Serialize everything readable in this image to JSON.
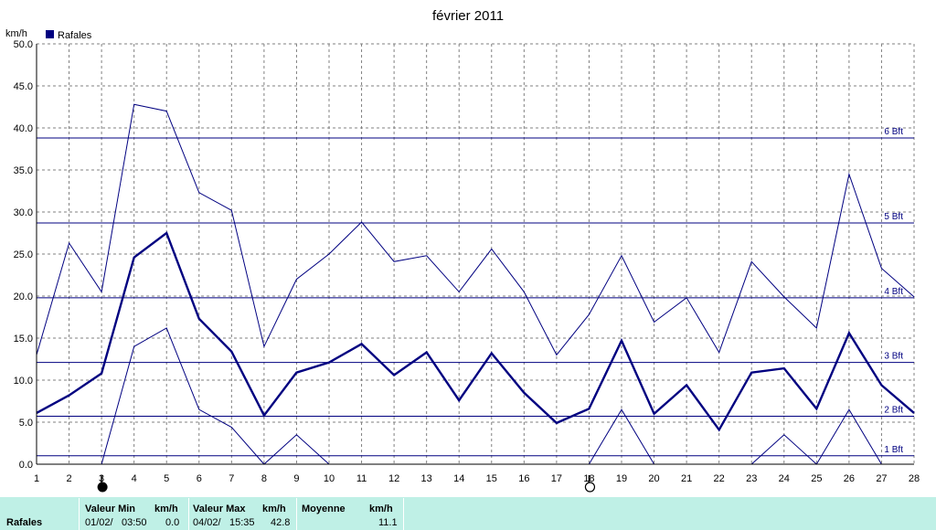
{
  "chart_data": {
    "type": "line",
    "title": "février 2011",
    "ylabel": "km/h",
    "legend": "Rafales",
    "legend_placement": "top-left",
    "grid": true,
    "xlim": [
      1,
      28
    ],
    "ylim": [
      0,
      50
    ],
    "x_ticks": [
      1,
      2,
      3,
      4,
      5,
      6,
      7,
      8,
      9,
      10,
      11,
      12,
      13,
      14,
      15,
      16,
      17,
      18,
      19,
      20,
      21,
      22,
      23,
      24,
      25,
      26,
      27,
      28
    ],
    "y_ticks": [
      "0.0",
      "5.0",
      "10.0",
      "15.0",
      "20.0",
      "25.0",
      "30.0",
      "35.0",
      "40.0",
      "45.0",
      "50.0"
    ],
    "x": [
      1,
      2,
      3,
      4,
      5,
      6,
      7,
      8,
      9,
      10,
      11,
      12,
      13,
      14,
      15,
      16,
      17,
      18,
      19,
      20,
      21,
      22,
      23,
      24,
      25,
      26,
      27,
      28
    ],
    "series": [
      {
        "name": "Rafales",
        "role": "max",
        "color": "#000080",
        "width": 1,
        "values": [
          13.0,
          26.3,
          20.5,
          42.8,
          42.0,
          32.3,
          30.2,
          14.0,
          22.0,
          25.0,
          28.8,
          24.1,
          24.8,
          20.5,
          25.6,
          20.5,
          13.0,
          17.8,
          24.8,
          16.9,
          19.8,
          13.3,
          24.1,
          19.9,
          16.2,
          34.5,
          23.3,
          19.9
        ]
      },
      {
        "name": "Rafales",
        "role": "mean",
        "color": "#000080",
        "width": 2.4,
        "values": [
          6.1,
          8.2,
          10.8,
          24.6,
          27.5,
          17.3,
          13.4,
          5.8,
          10.9,
          12.1,
          14.3,
          10.6,
          13.3,
          7.6,
          13.2,
          8.5,
          4.9,
          6.6,
          14.7,
          6.0,
          9.4,
          4.1,
          10.9,
          11.4,
          6.6,
          15.6,
          9.4,
          6.1
        ]
      },
      {
        "name": "Rafales",
        "role": "min",
        "color": "#000080",
        "width": 1,
        "values": [
          null,
          null,
          0.0,
          14.0,
          16.2,
          6.5,
          4.4,
          0.0,
          3.5,
          0.0,
          null,
          null,
          null,
          null,
          null,
          null,
          null,
          0.0,
          6.5,
          0.0,
          null,
          null,
          0.0,
          3.5,
          0.0,
          6.5,
          0.0,
          null
        ]
      }
    ],
    "beaufort_lines": [
      {
        "label": "1 Bft",
        "value": 1.0
      },
      {
        "label": "2 Bft",
        "value": 5.7
      },
      {
        "label": "3 Bft",
        "value": 12.1
      },
      {
        "label": "4 Bft",
        "value": 19.8
      },
      {
        "label": "5 Bft",
        "value": 28.7
      },
      {
        "label": "6 Bft",
        "value": 38.8
      }
    ],
    "moon_phases": [
      {
        "day": 3,
        "phase": "new-moon"
      },
      {
        "day": 18,
        "phase": "full-moon"
      }
    ],
    "colors": {
      "series": "#000080",
      "grid": "#808080",
      "beaufort": "#000080",
      "stats_bg": "#bff0e6"
    }
  },
  "stats": {
    "row_label": "Rafales",
    "min_header": "Valeur Min",
    "min_unit": "km/h",
    "min_date": "01/02/",
    "min_time": "03:50",
    "min_value": "0.0",
    "max_header": "Valeur Max",
    "max_unit": "km/h",
    "max_date": "04/02/",
    "max_time": "15:35",
    "max_value": "42.8",
    "avg_header": "Moyenne",
    "avg_unit": "km/h",
    "avg_value": "11.1"
  }
}
